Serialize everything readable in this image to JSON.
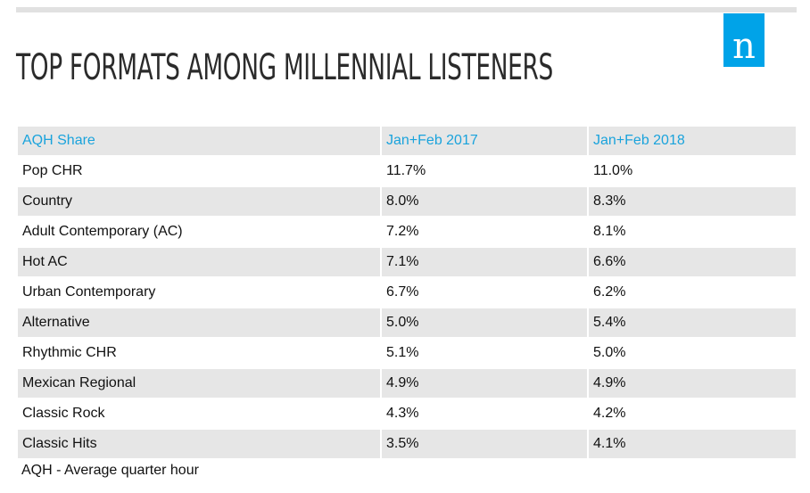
{
  "title": "TOP FORMATS AMONG MILLENNIAL LISTENERS",
  "logo": {
    "letter": "n",
    "color": "#00a3e8"
  },
  "chart_data": {
    "type": "table",
    "columns": [
      "AQH Share",
      "Jan+Feb 2017",
      "Jan+Feb 2018"
    ],
    "rows": [
      [
        "Pop CHR",
        "11.7%",
        "11.0%"
      ],
      [
        "Country",
        "8.0%",
        "8.3%"
      ],
      [
        "Adult Contemporary (AC)",
        "7.2%",
        "8.1%"
      ],
      [
        "Hot AC",
        "7.1%",
        "6.6%"
      ],
      [
        "Urban Contemporary",
        "6.7%",
        "6.2%"
      ],
      [
        "Alternative",
        "5.0%",
        "5.4%"
      ],
      [
        "Rhythmic CHR",
        "5.1%",
        "5.0%"
      ],
      [
        "Mexican Regional",
        "4.9%",
        "4.9%"
      ],
      [
        "Classic Rock",
        "4.3%",
        "4.2%"
      ],
      [
        "Classic Hits",
        "3.5%",
        "4.1%"
      ]
    ],
    "header_color": "#1aa3dc",
    "stripe_color": "#e6e6e6"
  },
  "footnote": "AQH - Average quarter hour"
}
